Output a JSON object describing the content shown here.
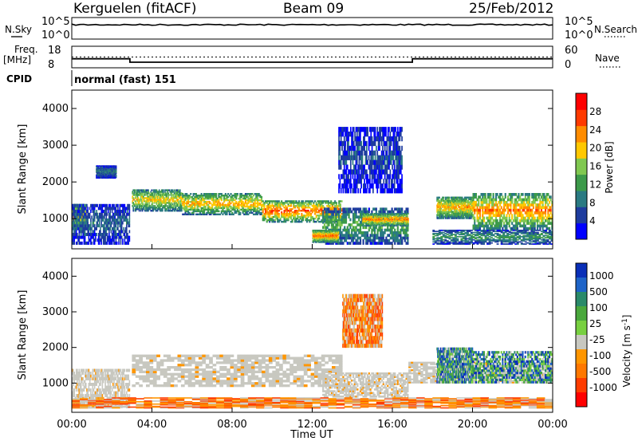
{
  "header": {
    "radar": "Kerguelen (fitACF)",
    "beam": "Beam 09",
    "date": "25/Feb/2012"
  },
  "labels": {
    "nsky": "N.Sky",
    "nsearch": "N.Search",
    "freq": "Freq.",
    "freq_unit": "[MHz]",
    "nave": "Nave",
    "cpid": "CPID",
    "cpid_value": "normal (fast) 151"
  },
  "chart_data": [
    {
      "type": "line",
      "panel": "noise",
      "left_ticks": [
        "10^5",
        "10^0"
      ],
      "right_ticks": [
        "10^5",
        "10^0"
      ],
      "series": [
        {
          "name": "N.Sky",
          "style": "solid"
        },
        {
          "name": "N.Search",
          "style": "dotted"
        }
      ]
    },
    {
      "type": "line",
      "panel": "frequency",
      "left_ticks": [
        "18",
        "8"
      ],
      "right_ticks": [
        "60",
        "0"
      ],
      "series": [
        {
          "name": "Freq.",
          "x": [
            0,
            2.9,
            2.9,
            17.0,
            17.0,
            24.0
          ],
          "y": [
            12.2,
            12.2,
            10.6,
            10.6,
            12.2,
            12.2
          ],
          "ylim": [
            8,
            18
          ]
        },
        {
          "name": "Nave",
          "x": [
            0,
            24
          ],
          "y": [
            30,
            30
          ],
          "ylim": [
            0,
            60
          ]
        }
      ]
    },
    {
      "type": "heatmap",
      "panel": "power",
      "ylabel": "Slant Range [km]",
      "ylim": [
        180,
        4500
      ],
      "xlim": [
        0,
        24
      ],
      "yticks": [
        "1000",
        "2000",
        "3000",
        "4000"
      ],
      "colorbar": {
        "label": "Power [dB]",
        "range": [
          0,
          32
        ],
        "ticks": [
          "4",
          "8",
          "12",
          "16",
          "20",
          "24",
          "28"
        ],
        "colors": [
          "#0000ff",
          "#1e3c9e",
          "#2a7a82",
          "#3c9a4a",
          "#80c850",
          "#ffc800",
          "#ff8c00",
          "#ff3a00",
          "#ff0000"
        ]
      },
      "echo_regions": [
        {
          "t0": 0.0,
          "t1": 0.7,
          "r0": 700,
          "r1": 1400,
          "level": 22
        },
        {
          "t0": 0.0,
          "t1": 2.9,
          "r0": 300,
          "r1": 1400,
          "level": 8
        },
        {
          "t0": 1.2,
          "t1": 2.2,
          "r0": 2100,
          "r1": 2450,
          "level": 9
        },
        {
          "t0": 3.0,
          "t1": 5.5,
          "r0": 1200,
          "r1": 1800,
          "level": 20
        },
        {
          "t0": 5.5,
          "t1": 9.5,
          "r0": 1100,
          "r1": 1700,
          "level": 22
        },
        {
          "t0": 9.5,
          "t1": 13.5,
          "r0": 900,
          "r1": 1500,
          "level": 26
        },
        {
          "t0": 12.5,
          "t1": 16.8,
          "r0": 300,
          "r1": 1300,
          "level": 14
        },
        {
          "t0": 14.5,
          "t1": 16.8,
          "r0": 800,
          "r1": 1150,
          "level": 24
        },
        {
          "t0": 12.0,
          "t1": 13.3,
          "r0": 350,
          "r1": 700,
          "level": 25
        },
        {
          "t0": 13.3,
          "t1": 16.5,
          "r0": 1700,
          "r1": 3500,
          "level": 6
        },
        {
          "t0": 18.2,
          "t1": 20.0,
          "r0": 1000,
          "r1": 1600,
          "level": 22
        },
        {
          "t0": 20.0,
          "t1": 24.0,
          "r0": 700,
          "r1": 1700,
          "level": 24
        },
        {
          "t0": 18.0,
          "t1": 24.0,
          "r0": 300,
          "r1": 700,
          "level": 12
        }
      ]
    },
    {
      "type": "heatmap",
      "panel": "velocity",
      "ylabel": "Slant Range [km]",
      "xlabel": "Time UT",
      "ylim": [
        180,
        4500
      ],
      "xlim": [
        0,
        24
      ],
      "yticks": [
        "1000",
        "2000",
        "3000",
        "4000"
      ],
      "xticks": [
        "00:00",
        "04:00",
        "08:00",
        "12:00",
        "16:00",
        "20:00",
        "00:00"
      ],
      "colorbar": {
        "label": "Velocity [m s",
        "label_sup": "-1",
        "label_end": "]",
        "ticks": [
          "1000",
          "500",
          "100",
          "25",
          "-25",
          "-100",
          "-500",
          "-1000"
        ],
        "colors": [
          "#0a2fb8",
          "#1e64c8",
          "#2a8a6a",
          "#4aa83c",
          "#78d040",
          "#c8c8c0",
          "#ff9600",
          "#ff7800",
          "#ff3c00",
          "#ff0000"
        ]
      },
      "echo_regions": [
        {
          "t0": 0.0,
          "t1": 2.9,
          "r0": 300,
          "r1": 1400,
          "class": "ground"
        },
        {
          "t0": 3.0,
          "t1": 13.5,
          "r0": 900,
          "r1": 1800,
          "class": "ground"
        },
        {
          "t0": 12.5,
          "t1": 16.8,
          "r0": 600,
          "r1": 1300,
          "class": "ground"
        },
        {
          "t0": 16.8,
          "t1": 24.0,
          "r0": 1000,
          "r1": 1600,
          "class": "ground"
        },
        {
          "t0": 18.2,
          "t1": 20.0,
          "r0": 1000,
          "r1": 2000,
          "class": "positive"
        },
        {
          "t0": 20.0,
          "t1": 24.0,
          "r0": 1000,
          "r1": 1900,
          "class": "positive"
        },
        {
          "t0": 13.5,
          "t1": 15.5,
          "r0": 2000,
          "r1": 3500,
          "class": "negative"
        },
        {
          "t0": 0.0,
          "t1": 24.0,
          "r0": 300,
          "r1": 600,
          "class": "negative"
        }
      ]
    }
  ]
}
